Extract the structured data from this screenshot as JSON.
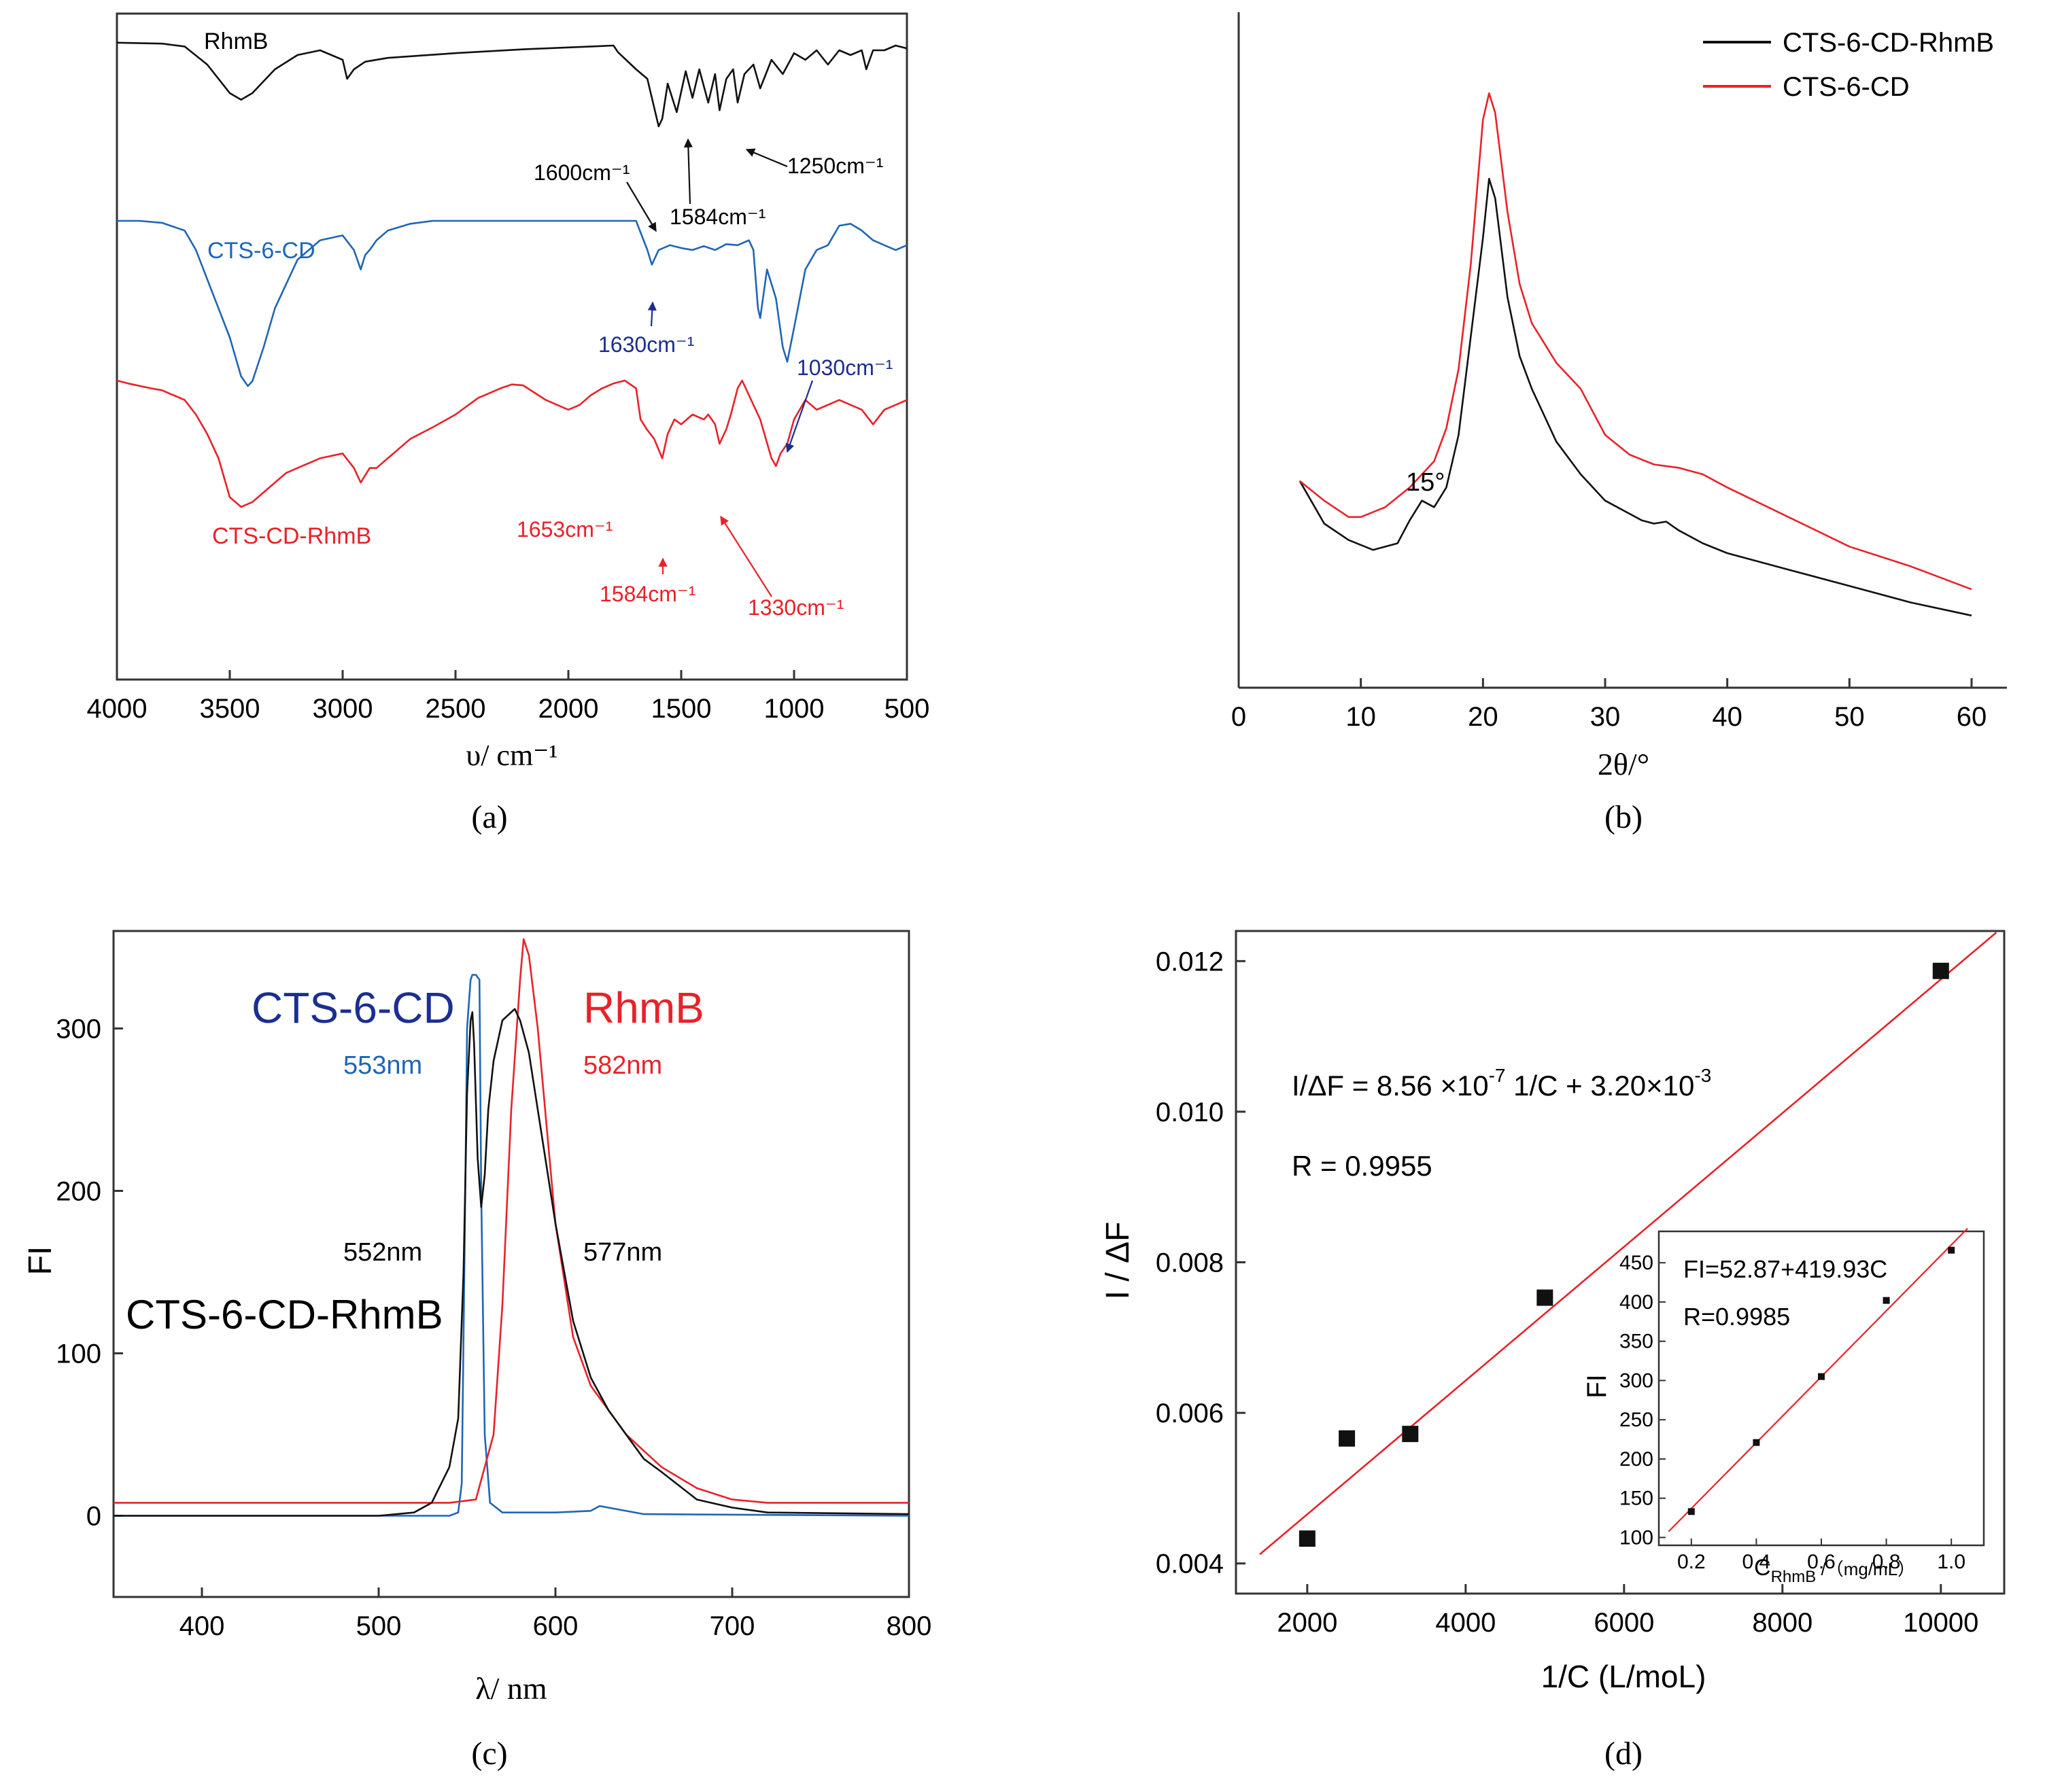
{
  "colors": {
    "black": "#111111",
    "blue": "#1f66b5",
    "navy": "#1b2f8f",
    "red": "#e8222a"
  },
  "chart_data": [
    {
      "id": "a",
      "type": "line",
      "caption": "(a)",
      "xlabel": "υ/ cm⁻¹",
      "ylabel": "",
      "xlim": [
        4000,
        500
      ],
      "x_ticks": [
        "4000",
        "3500",
        "3000",
        "2500",
        "2000",
        "1500",
        "1000",
        "500"
      ],
      "y_ticks": [],
      "series": [
        {
          "name": "RhmB",
          "color": "#111111",
          "label": "RhmB",
          "x": [
            4000,
            3800,
            3700,
            3600,
            3500,
            3450,
            3400,
            3300,
            3200,
            3100,
            3000,
            2980,
            2950,
            2900,
            2800,
            2500,
            2200,
            2000,
            1900,
            1800,
            1780,
            1700,
            1650,
            1600,
            1584,
            1560,
            1520,
            1480,
            1450,
            1420,
            1380,
            1350,
            1330,
            1300,
            1270,
            1250,
            1220,
            1180,
            1150,
            1100,
            1050,
            1000,
            950,
            900,
            850,
            800,
            750,
            700,
            680,
            650,
            600,
            550,
            500
          ],
          "y": [
            0.2,
            0.3,
            0.6,
            2.5,
            5.5,
            6.2,
            5.5,
            3.0,
            1.5,
            1.0,
            2.0,
            4.0,
            3.0,
            2.2,
            1.8,
            1.3,
            0.9,
            0.7,
            0.6,
            0.5,
            1.2,
            3.0,
            4.0,
            9.0,
            8.2,
            4.5,
            7.5,
            3.2,
            6.0,
            3.0,
            6.5,
            3.5,
            7.3,
            4.0,
            3.0,
            6.5,
            3.5,
            2.5,
            5.0,
            2.0,
            3.5,
            1.3,
            2.0,
            1.0,
            2.5,
            1.0,
            1.5,
            1.0,
            3.0,
            1.0,
            1.0,
            0.5,
            0.8
          ]
        },
        {
          "name": "CTS-6-CD",
          "color": "#1f66b5",
          "label": "CTS-6-CD",
          "x": [
            4000,
            3900,
            3800,
            3700,
            3650,
            3600,
            3500,
            3450,
            3420,
            3400,
            3350,
            3300,
            3200,
            3100,
            3000,
            2950,
            2920,
            2900,
            2880,
            2850,
            2800,
            2700,
            2600,
            2500,
            2400,
            2300,
            2200,
            2100,
            2000,
            1900,
            1800,
            1750,
            1700,
            1650,
            1630,
            1600,
            1550,
            1500,
            1450,
            1400,
            1350,
            1300,
            1250,
            1200,
            1180,
            1160,
            1150,
            1120,
            1080,
            1050,
            1030,
            1000,
            950,
            900,
            850,
            800,
            750,
            700,
            650,
            600,
            550,
            500
          ],
          "y": [
            0,
            0,
            0.2,
            1.0,
            3.0,
            6.0,
            12.0,
            16.0,
            17.0,
            16.5,
            13.0,
            9.0,
            4.0,
            2.0,
            1.5,
            3.0,
            5.0,
            3.5,
            3.0,
            2.0,
            1.0,
            0.3,
            0,
            0,
            0,
            0,
            0,
            0,
            0,
            0,
            0,
            0,
            0,
            3.0,
            4.5,
            3.0,
            2.5,
            2.8,
            3.0,
            2.6,
            3.0,
            2.4,
            2.5,
            2.0,
            3.0,
            9.0,
            10.0,
            5.0,
            8.0,
            13.0,
            14.5,
            11.0,
            5.0,
            3.0,
            2.5,
            0.5,
            0.3,
            1.0,
            2.0,
            2.5,
            3.0,
            2.5
          ]
        },
        {
          "name": "CTS-CD-RhmB",
          "color": "#e8222a",
          "label": "CTS-CD-RhmB",
          "x": [
            4000,
            3950,
            3850,
            3800,
            3750,
            3700,
            3650,
            3600,
            3550,
            3500,
            3450,
            3400,
            3350,
            3300,
            3250,
            3200,
            3100,
            3000,
            2950,
            2920,
            2880,
            2850,
            2800,
            2700,
            2600,
            2500,
            2400,
            2300,
            2250,
            2200,
            2100,
            2000,
            1950,
            1900,
            1850,
            1800,
            1750,
            1700,
            1680,
            1653,
            1620,
            1584,
            1560,
            1530,
            1500,
            1450,
            1400,
            1380,
            1350,
            1330,
            1300,
            1280,
            1250,
            1230,
            1200,
            1150,
            1100,
            1080,
            1060,
            1030,
            1000,
            950,
            900,
            850,
            800,
            700,
            650,
            600,
            550,
            500
          ],
          "y": [
            0,
            0.3,
            0.8,
            1.0,
            1.5,
            2.0,
            3.5,
            5.5,
            8.0,
            12.0,
            13.0,
            12.5,
            11.5,
            10.5,
            9.5,
            9.0,
            8.0,
            7.5,
            9.0,
            10.5,
            9.0,
            9.0,
            8.0,
            6.0,
            4.8,
            3.5,
            1.8,
            0.8,
            0.4,
            0.5,
            2.0,
            3.0,
            2.5,
            1.5,
            0.8,
            0.3,
            0,
            0.8,
            4.0,
            5.0,
            6.0,
            8.0,
            5.5,
            4.0,
            4.5,
            3.5,
            4.0,
            3.5,
            4.5,
            6.5,
            5.0,
            3.5,
            0.8,
            0,
            1.5,
            4.0,
            8.0,
            8.8,
            7.5,
            6.5,
            4.0,
            2.0,
            3.0,
            2.5,
            2.0,
            3.0,
            4.5,
            3.0,
            2.5,
            2.0
          ]
        }
      ],
      "annotations": [
        "1600cm⁻¹",
        "1584cm⁻¹",
        "1250cm⁻¹",
        "1630cm⁻¹",
        "1030cm⁻¹",
        "1653cm⁻¹",
        "1584cm⁻¹",
        "1330cm⁻¹"
      ]
    },
    {
      "id": "b",
      "type": "line",
      "caption": "(b)",
      "xlabel": "2θ/°",
      "ylabel": "",
      "xlim": [
        0,
        60
      ],
      "x_ticks": [
        "0",
        "10",
        "20",
        "30",
        "40",
        "50",
        "60"
      ],
      "y_ticks": [],
      "legend_position": "top-right",
      "series": [
        {
          "name": "CTS-6-CD-RhmB",
          "color": "#111111",
          "x": [
            5,
            7,
            9,
            11,
            13,
            14,
            15,
            16,
            17,
            18,
            19,
            20,
            20.5,
            21,
            22,
            23,
            24,
            25,
            26,
            28,
            30,
            32,
            33,
            34,
            35,
            36,
            38,
            40,
            45,
            50,
            55,
            60
          ],
          "y": [
            230,
            165,
            140,
            125,
            135,
            170,
            200,
            190,
            220,
            300,
            450,
            600,
            690,
            660,
            510,
            420,
            370,
            330,
            290,
            240,
            200,
            180,
            170,
            165,
            168,
            155,
            135,
            120,
            95,
            70,
            45,
            25
          ]
        },
        {
          "name": "CTS-6-CD",
          "color": "#e8222a",
          "x": [
            5,
            7,
            9,
            10,
            12,
            14,
            16,
            17,
            18,
            19,
            20,
            20.5,
            21,
            22,
            23,
            24,
            25,
            26,
            28,
            30,
            32,
            34,
            36,
            38,
            40,
            45,
            50,
            55,
            60
          ],
          "y": [
            230,
            200,
            175,
            175,
            190,
            220,
            260,
            310,
            400,
            560,
            780,
            820,
            790,
            640,
            530,
            470,
            440,
            410,
            370,
            300,
            270,
            255,
            250,
            240,
            220,
            175,
            130,
            100,
            65
          ]
        }
      ],
      "annotations": [
        "15°"
      ]
    },
    {
      "id": "c",
      "type": "line",
      "caption": "(c)",
      "xlabel": "λ/ nm",
      "ylabel": "FI",
      "xlim": [
        350,
        800
      ],
      "ylim": [
        -50,
        360
      ],
      "x_ticks": [
        "400",
        "500",
        "600",
        "700",
        "800"
      ],
      "y_ticks": [
        "0",
        "100",
        "200",
        "300"
      ],
      "series": [
        {
          "name": "CTS-6-CD",
          "color": "#1f66b5",
          "x": [
            350,
            500,
            540,
            545,
            547,
            549,
            550,
            552,
            553,
            555,
            557,
            558,
            560,
            563,
            570,
            600,
            620,
            625,
            650,
            800
          ],
          "y": [
            0,
            0,
            0,
            2,
            20,
            200,
            300,
            330,
            333,
            333,
            330,
            200,
            50,
            8,
            2,
            2,
            3,
            6,
            1,
            0
          ]
        },
        {
          "name": "RhmB",
          "color": "#e8222a",
          "x": [
            350,
            500,
            540,
            555,
            565,
            570,
            575,
            580,
            582,
            585,
            590,
            595,
            600,
            610,
            620,
            630,
            640,
            650,
            660,
            680,
            700,
            720,
            800
          ],
          "y": [
            8,
            8,
            8,
            10,
            50,
            130,
            250,
            330,
            355,
            345,
            300,
            240,
            180,
            110,
            80,
            65,
            50,
            40,
            30,
            17,
            10,
            8,
            8
          ]
        },
        {
          "name": "CTS-6-CD-RhmB",
          "color": "#111111",
          "x": [
            350,
            500,
            520,
            530,
            540,
            545,
            548,
            550,
            552,
            553,
            554,
            556,
            558,
            560,
            562,
            565,
            570,
            575,
            577,
            580,
            585,
            590,
            600,
            610,
            620,
            630,
            640,
            650,
            660,
            680,
            700,
            720,
            800
          ],
          "y": [
            0,
            0,
            2,
            8,
            30,
            60,
            150,
            260,
            305,
            310,
            290,
            220,
            190,
            210,
            250,
            280,
            305,
            310,
            312,
            305,
            285,
            250,
            180,
            120,
            85,
            65,
            50,
            35,
            27,
            10,
            5,
            2,
            1
          ]
        }
      ],
      "labels": {
        "cd_name": "CTS-6-CD",
        "cd_peak": "553nm",
        "rhmb_name": "RhmB",
        "rhmb_peak": "582nm",
        "complex_peak1": "552nm",
        "complex_peak2": "577nm",
        "complex_name": "CTS-6-CD-RhmB"
      }
    },
    {
      "id": "d",
      "type": "scatter",
      "caption": "(d)",
      "xlabel": "1/C (L/moL)",
      "ylabel": "I / ΔF",
      "xlim": [
        1100,
        10800
      ],
      "ylim": [
        0.0036,
        0.0124
      ],
      "x_ticks": [
        "2000",
        "4000",
        "6000",
        "8000",
        "10000"
      ],
      "y_ticks": [
        "0.004",
        "0.006",
        "0.008",
        "0.010",
        "0.012"
      ],
      "points": {
        "x": [
          2000,
          2500,
          3300,
          5000,
          10000
        ],
        "y": [
          0.00433,
          0.00566,
          0.00572,
          0.00753,
          0.01187
        ]
      },
      "fit": {
        "x": [
          1400,
          10700
        ],
        "y": [
          0.00412,
          0.01238
        ],
        "color": "#e8222a"
      },
      "equation": {
        "main": "I/ΔF = 8.56 ×10",
        "exp1": "-7",
        "mid": " 1/C + 3.20×10",
        "exp2": "-3"
      },
      "r_text": "R = 0.9955",
      "inset": {
        "type": "scatter",
        "xlabel_main": "C",
        "xlabel_sub": "RhmB",
        "xlabel_unit": " /（mg/mL）",
        "ylabel": "FI",
        "xlim": [
          0.1,
          1.1
        ],
        "ylim": [
          90,
          490
        ],
        "x_ticks": [
          "0.2",
          "0.4",
          "0.6",
          "0.8",
          "1.0"
        ],
        "y_ticks": [
          "100",
          "150",
          "200",
          "250",
          "300",
          "350",
          "400",
          "450"
        ],
        "points": {
          "x": [
            0.2,
            0.4,
            0.6,
            0.8,
            1.0
          ],
          "y": [
            133,
            221,
            305,
            402,
            466
          ]
        },
        "fit": {
          "x": [
            0.13,
            1.05
          ],
          "y": [
            107.5,
            493.8
          ]
        },
        "equation": "FI=52.87+419.93C",
        "r_text": "R=0.9985"
      }
    }
  ]
}
